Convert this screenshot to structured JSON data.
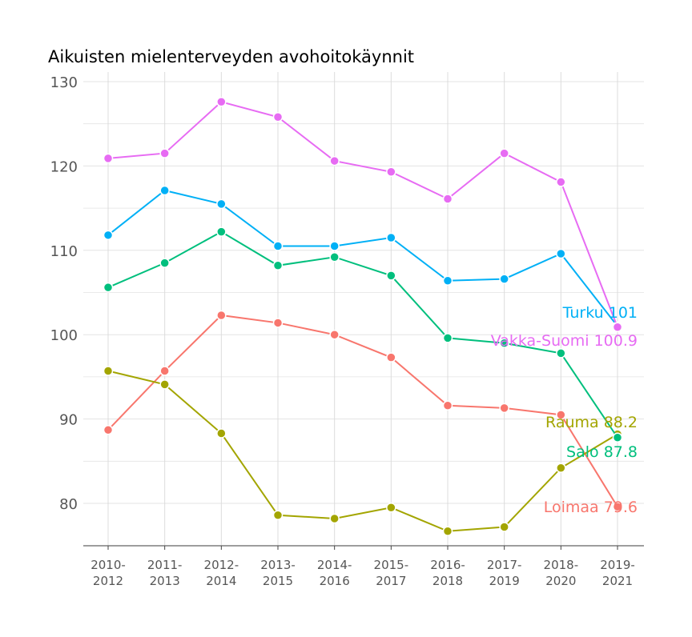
{
  "chart_data": {
    "type": "line",
    "title": "Aikuisten mielenterveyden avohoitokäynnit",
    "xlabel": "",
    "ylabel": "",
    "categories": [
      "2010-\n2012",
      "2011-\n2013",
      "2012-\n2014",
      "2013-\n2015",
      "2014-\n2016",
      "2015-\n2017",
      "2016-\n2018",
      "2017-\n2019",
      "2018-\n2020",
      "2019-\n2021"
    ],
    "ylim": [
      75,
      131
    ],
    "yticks": [
      80,
      90,
      100,
      110,
      120,
      130
    ],
    "grid": true,
    "legend": "none (end labels)",
    "series": [
      {
        "name": "Loimaa",
        "color": "#F8766D",
        "end_label": "Loimaa 79.6",
        "values": [
          88.7,
          95.7,
          102.3,
          101.4,
          100.0,
          97.3,
          91.6,
          91.3,
          90.5,
          79.6
        ]
      },
      {
        "name": "Rauma",
        "color": "#A3A500",
        "end_label": "Rauma 88.2",
        "values": [
          95.7,
          94.1,
          88.3,
          78.6,
          78.2,
          79.5,
          76.7,
          77.2,
          84.2,
          88.2
        ]
      },
      {
        "name": "Salo",
        "color": "#00BF7D",
        "end_label": "Salo 87.8",
        "values": [
          105.6,
          108.5,
          112.2,
          108.2,
          109.2,
          107.0,
          99.6,
          99.0,
          97.8,
          87.8
        ]
      },
      {
        "name": "Turku",
        "color": "#00B0F6",
        "end_label": "Turku 101",
        "values": [
          111.8,
          117.1,
          115.5,
          110.5,
          110.5,
          111.5,
          106.4,
          106.6,
          109.6,
          101.0
        ]
      },
      {
        "name": "Vakka-Suomi",
        "color": "#E76BF3",
        "end_label": "Vakka-Suomi 100.9",
        "values": [
          120.9,
          121.5,
          127.6,
          125.8,
          120.6,
          119.3,
          116.1,
          121.5,
          118.1,
          100.9
        ]
      }
    ]
  }
}
